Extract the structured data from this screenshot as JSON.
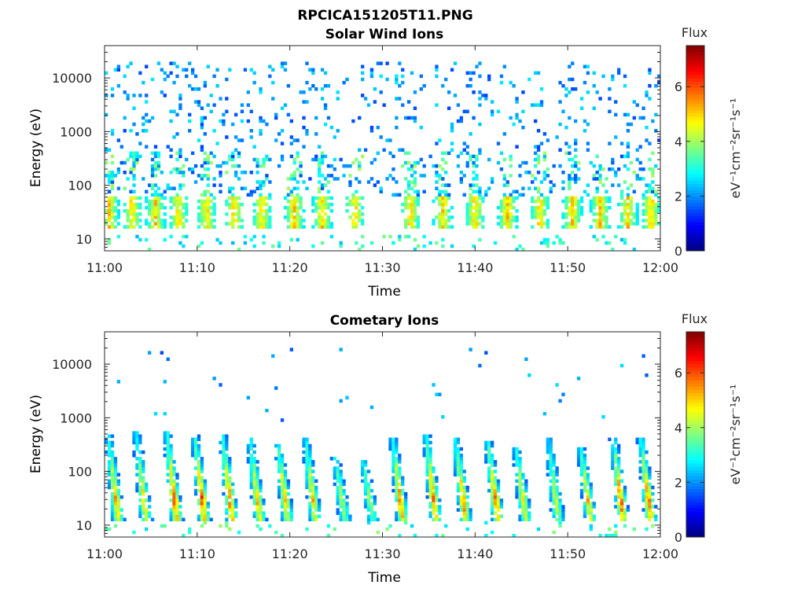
{
  "figure_title": "RPCICA151205T11.PNG",
  "chart_data": [
    {
      "type": "heatmap",
      "title": "Solar Wind Ions",
      "xlabel": "Time",
      "ylabel": "Energy (eV)",
      "x_range": [
        "11:00",
        "12:00"
      ],
      "x_ticks": [
        "11:00",
        "11:10",
        "11:20",
        "11:30",
        "11:40",
        "11:50",
        "12:00"
      ],
      "y_scale": "log",
      "y_range": [
        6,
        40000
      ],
      "y_ticks": [
        10,
        100,
        1000,
        10000
      ],
      "y_tick_labels": [
        "10",
        "100",
        "1000",
        "10000"
      ],
      "colorbar": {
        "title": "Flux",
        "unit": "eV⁻¹cm⁻²sr⁻¹s⁻¹",
        "range": [
          0,
          7.5
        ],
        "ticks": [
          0,
          2,
          4,
          6
        ],
        "colormap": "jet"
      },
      "low_energy_bursts_minutes": [
        0.5,
        3.0,
        5.5,
        8.0,
        11.0,
        14.0,
        17.0,
        20.5,
        23.5,
        27.0,
        33.0,
        36.5,
        40.0,
        43.5,
        47.0,
        50.5,
        53.5,
        56.5,
        59.0
      ],
      "burst_energy_range_eV": [
        15,
        60
      ],
      "peak_flux": 5.5,
      "background_energy_range_eV": [
        60,
        20000
      ],
      "background_flux": 2.0
    },
    {
      "type": "heatmap",
      "title": "Cometary Ions",
      "xlabel": "Time",
      "ylabel": "Energy (eV)",
      "x_range": [
        "11:00",
        "12:00"
      ],
      "x_ticks": [
        "11:00",
        "11:10",
        "11:20",
        "11:30",
        "11:40",
        "11:50",
        "12:00"
      ],
      "y_scale": "log",
      "y_range": [
        6,
        40000
      ],
      "y_ticks": [
        10,
        100,
        1000,
        10000
      ],
      "y_tick_labels": [
        "10",
        "100",
        "1000",
        "10000"
      ],
      "colorbar": {
        "title": "Flux",
        "unit": "eV⁻¹cm⁻²sr⁻¹s⁻¹",
        "range": [
          0,
          7.5
        ],
        "ticks": [
          0,
          2,
          4,
          6
        ],
        "colormap": "jet"
      },
      "burst_minutes": [
        1.5,
        4.5,
        7.8,
        10.8,
        13.8,
        16.8,
        19.8,
        22.8,
        26.0,
        29.0,
        32.2,
        35.8,
        39.0,
        42.5,
        45.5,
        49.0,
        52.5,
        56.0,
        59.0
      ],
      "burst_peak_flux": [
        6.2,
        5.8,
        7.0,
        7.0,
        6.8,
        6.2,
        6.0,
        6.0,
        4.8,
        4.5,
        6.5,
        6.8,
        6.5,
        6.8,
        5.5,
        5.0,
        5.8,
        6.8,
        6.8
      ],
      "burst_top_energy_eV": [
        500,
        550,
        600,
        500,
        500,
        400,
        350,
        400,
        180,
        170,
        450,
        500,
        400,
        350,
        300,
        450,
        280,
        450,
        420
      ],
      "peak_energy_eV": 30
    }
  ]
}
